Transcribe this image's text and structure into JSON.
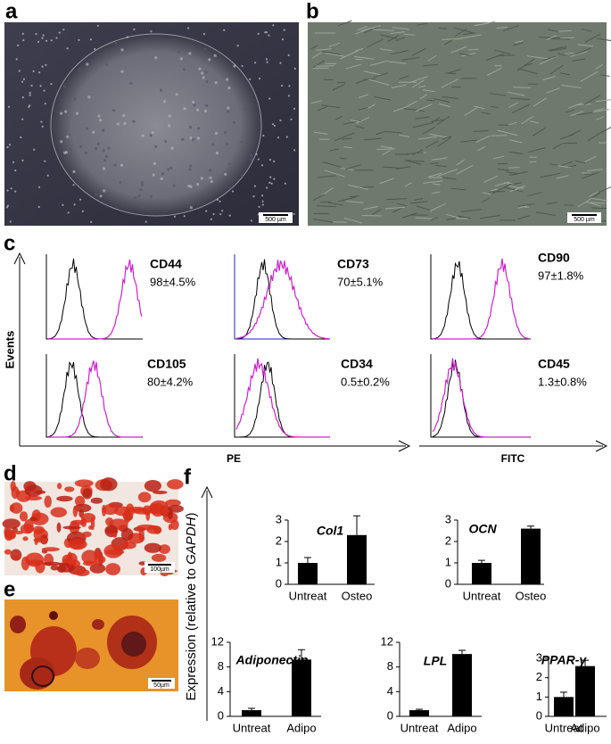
{
  "panel_labels": [
    "a",
    "b",
    "c",
    "d",
    "e",
    "f"
  ],
  "scale_bars": [
    "500 µm",
    "500 µm",
    "100µm",
    "50µm"
  ],
  "flow": {
    "y_label": "Events",
    "x_labels": [
      "PE",
      "FITC"
    ],
    "markers": [
      {
        "name": "CD44",
        "value": "98±4.5%"
      },
      {
        "name": "CD73",
        "value": "70±5.1%"
      },
      {
        "name": "CD90",
        "value": "97±1.8%"
      },
      {
        "name": "CD105",
        "value": "80±4.2%"
      },
      {
        "name": "CD34",
        "value": "0.5±0.2%"
      },
      {
        "name": "CD45",
        "value": "1.3±0.8%"
      }
    ]
  },
  "expression_label": [
    "Expression (relative to ",
    "GAPDH",
    ")"
  ],
  "chart_data": [
    {
      "type": "bar",
      "title": "Col1",
      "categories": [
        "Untreat",
        "Osteo"
      ],
      "values": [
        1.0,
        2.3
      ],
      "errors": [
        0.25,
        0.9
      ],
      "color": "#000000",
      "ylim": [
        0,
        3
      ],
      "yticks": [
        0,
        1,
        2,
        3
      ]
    },
    {
      "type": "bar",
      "title": "OCN",
      "categories": [
        "Untreat",
        "Osteo"
      ],
      "values": [
        1.0,
        2.6
      ],
      "errors": [
        0.12,
        0.12
      ],
      "color": "#000000",
      "ylim": [
        0,
        3
      ],
      "yticks": [
        0,
        1,
        2,
        3
      ]
    },
    {
      "type": "bar",
      "title": "Adiponectin",
      "categories": [
        "Untreat",
        "Adipo"
      ],
      "values": [
        1.0,
        9.2
      ],
      "errors": [
        0.3,
        1.6
      ],
      "color": "#000000",
      "ylim": [
        0,
        12
      ],
      "yticks": [
        0,
        4,
        8,
        12
      ]
    },
    {
      "type": "bar",
      "title": "LPL",
      "categories": [
        "Untreat",
        "Adipo"
      ],
      "values": [
        1.0,
        10.1
      ],
      "errors": [
        0.15,
        0.6
      ],
      "color": "#000000",
      "ylim": [
        0,
        12
      ],
      "yticks": [
        0,
        4,
        8,
        12
      ]
    },
    {
      "type": "bar",
      "title": "PPAR-γ",
      "categories": [
        "Untreat",
        "Adipo"
      ],
      "values": [
        1.0,
        2.6
      ],
      "errors": [
        0.25,
        0.3
      ],
      "color": "#000000",
      "ylim": [
        0,
        3
      ],
      "yticks": [
        0,
        1,
        2,
        3
      ]
    }
  ]
}
